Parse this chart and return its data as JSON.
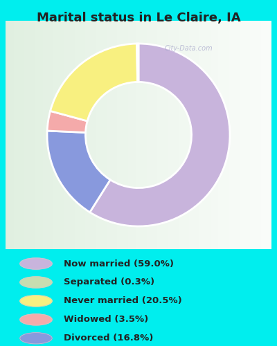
{
  "title": "Marital status in Le Claire, IA",
  "slices": [
    {
      "label": "Now married (59.0%)",
      "value": 59.0,
      "color": "#C8B4DC"
    },
    {
      "label": "Divorced (16.8%)",
      "value": 16.8,
      "color": "#8899DD"
    },
    {
      "label": "Widowed (3.5%)",
      "value": 3.5,
      "color": "#F4AAAA"
    },
    {
      "label": "Never married (20.5%)",
      "value": 20.5,
      "color": "#F8F080"
    },
    {
      "label": "Separated (0.3%)",
      "value": 0.3,
      "color": "#C8DDB0"
    }
  ],
  "legend_labels": [
    "Now married (59.0%)",
    "Separated (0.3%)",
    "Never married (20.5%)",
    "Widowed (3.5%)",
    "Divorced (16.8%)"
  ],
  "legend_colors": [
    "#C8B4DC",
    "#C8DDB0",
    "#F8F080",
    "#F4AAAA",
    "#8899DD"
  ],
  "background_color": "#00EEEE",
  "chart_bg_color": "#E0F0E0",
  "title_fontsize": 13,
  "title_color": "#222222",
  "watermark": "City-Data.com",
  "startangle": 90,
  "donut_width": 0.42
}
